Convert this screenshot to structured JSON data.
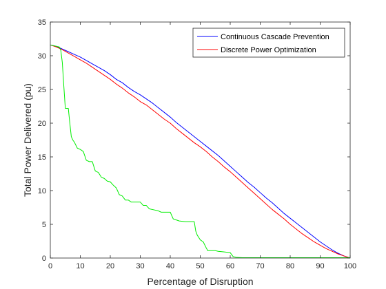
{
  "chart_data": {
    "type": "line",
    "xlabel": "Percentage of Disruption",
    "ylabel": "Total Power Delivered (pu)",
    "xlim": [
      0,
      100
    ],
    "ylim": [
      0,
      35
    ],
    "xticks": [
      0,
      10,
      20,
      30,
      40,
      50,
      60,
      70,
      80,
      90,
      100
    ],
    "yticks": [
      0,
      5,
      10,
      15,
      20,
      25,
      30,
      35
    ],
    "grid": false,
    "legend_position": "top-right",
    "series": [
      {
        "name": "Continuous Cascade Prevention",
        "color": "#0000ff",
        "points": [
          [
            0,
            31.6
          ],
          [
            2,
            31.4
          ],
          [
            4,
            31.0
          ],
          [
            6,
            30.6
          ],
          [
            8,
            30.2
          ],
          [
            10,
            29.8
          ],
          [
            12,
            29.3
          ],
          [
            14,
            28.8
          ],
          [
            16,
            28.3
          ],
          [
            18,
            27.8
          ],
          [
            20,
            27.2
          ],
          [
            22,
            26.5
          ],
          [
            24,
            26.0
          ],
          [
            26,
            25.3
          ],
          [
            28,
            24.7
          ],
          [
            30,
            24.2
          ],
          [
            32,
            23.6
          ],
          [
            34,
            23.0
          ],
          [
            36,
            22.3
          ],
          [
            38,
            21.6
          ],
          [
            40,
            20.9
          ],
          [
            42,
            20.1
          ],
          [
            44,
            19.4
          ],
          [
            46,
            18.7
          ],
          [
            48,
            18.0
          ],
          [
            50,
            17.3
          ],
          [
            52,
            16.6
          ],
          [
            54,
            15.9
          ],
          [
            56,
            15.2
          ],
          [
            58,
            14.4
          ],
          [
            60,
            13.6
          ],
          [
            62,
            12.8
          ],
          [
            64,
            12.0
          ],
          [
            66,
            11.2
          ],
          [
            68,
            10.5
          ],
          [
            70,
            9.7
          ],
          [
            72,
            8.9
          ],
          [
            74,
            8.2
          ],
          [
            76,
            7.4
          ],
          [
            78,
            6.6
          ],
          [
            80,
            5.9
          ],
          [
            82,
            5.2
          ],
          [
            84,
            4.5
          ],
          [
            86,
            3.8
          ],
          [
            88,
            3.1
          ],
          [
            90,
            2.4
          ],
          [
            92,
            1.8
          ],
          [
            94,
            1.2
          ],
          [
            96,
            0.7
          ],
          [
            98,
            0.3
          ],
          [
            100,
            0.0
          ]
        ]
      },
      {
        "name": "Discrete Power Optimization",
        "color": "#ff0000",
        "points": [
          [
            0,
            31.6
          ],
          [
            2,
            31.3
          ],
          [
            4,
            30.9
          ],
          [
            6,
            30.4
          ],
          [
            8,
            29.9
          ],
          [
            10,
            29.4
          ],
          [
            12,
            28.9
          ],
          [
            14,
            28.3
          ],
          [
            16,
            27.7
          ],
          [
            18,
            27.1
          ],
          [
            20,
            26.5
          ],
          [
            22,
            25.8
          ],
          [
            24,
            25.2
          ],
          [
            26,
            24.5
          ],
          [
            28,
            23.9
          ],
          [
            30,
            23.2
          ],
          [
            32,
            22.7
          ],
          [
            34,
            22.0
          ],
          [
            36,
            21.3
          ],
          [
            38,
            20.6
          ],
          [
            40,
            20.0
          ],
          [
            42,
            19.2
          ],
          [
            44,
            18.5
          ],
          [
            46,
            17.8
          ],
          [
            48,
            17.1
          ],
          [
            50,
            16.5
          ],
          [
            52,
            15.8
          ],
          [
            54,
            15.0
          ],
          [
            56,
            14.3
          ],
          [
            58,
            13.5
          ],
          [
            60,
            12.8
          ],
          [
            62,
            12.0
          ],
          [
            64,
            11.2
          ],
          [
            66,
            10.4
          ],
          [
            68,
            9.6
          ],
          [
            70,
            8.8
          ],
          [
            72,
            8.0
          ],
          [
            74,
            7.2
          ],
          [
            76,
            6.5
          ],
          [
            78,
            5.8
          ],
          [
            80,
            5.0
          ],
          [
            82,
            4.3
          ],
          [
            84,
            3.6
          ],
          [
            86,
            3.0
          ],
          [
            88,
            2.4
          ],
          [
            90,
            1.9
          ],
          [
            92,
            1.4
          ],
          [
            94,
            1.0
          ],
          [
            96,
            0.6
          ],
          [
            98,
            0.3
          ],
          [
            100,
            0.0
          ]
        ]
      },
      {
        "name": "",
        "color": "#00ee00",
        "points": [
          [
            0,
            31.6
          ],
          [
            3,
            31.3
          ],
          [
            3.5,
            30.8
          ],
          [
            4,
            29.0
          ],
          [
            4.5,
            25.5
          ],
          [
            5,
            22.2
          ],
          [
            6,
            22.2
          ],
          [
            6.5,
            20.0
          ],
          [
            7,
            18.0
          ],
          [
            7.5,
            17.5
          ],
          [
            8,
            17.2
          ],
          [
            9,
            16.3
          ],
          [
            10,
            16.1
          ],
          [
            11,
            15.8
          ],
          [
            12,
            14.5
          ],
          [
            13,
            14.3
          ],
          [
            14,
            14.3
          ],
          [
            15,
            12.9
          ],
          [
            16,
            12.7
          ],
          [
            17,
            12.0
          ],
          [
            18,
            11.8
          ],
          [
            19,
            11.4
          ],
          [
            20,
            11.3
          ],
          [
            21,
            10.8
          ],
          [
            22,
            10.4
          ],
          [
            23,
            9.4
          ],
          [
            24,
            9.2
          ],
          [
            25,
            8.6
          ],
          [
            26,
            8.6
          ],
          [
            27,
            8.3
          ],
          [
            28,
            8.3
          ],
          [
            30,
            8.3
          ],
          [
            31,
            7.8
          ],
          [
            32,
            7.8
          ],
          [
            33,
            7.3
          ],
          [
            34,
            7.2
          ],
          [
            36,
            7.0
          ],
          [
            37,
            6.8
          ],
          [
            40,
            6.8
          ],
          [
            41,
            5.8
          ],
          [
            43,
            5.5
          ],
          [
            45,
            5.4
          ],
          [
            48,
            5.4
          ],
          [
            48.5,
            4.0
          ],
          [
            49,
            3.4
          ],
          [
            50,
            2.7
          ],
          [
            51,
            2.4
          ],
          [
            52,
            1.5
          ],
          [
            52.5,
            1.1
          ],
          [
            55,
            1.1
          ],
          [
            56,
            1.0
          ],
          [
            58,
            0.9
          ],
          [
            60,
            0.8
          ],
          [
            61,
            0.2
          ],
          [
            62,
            0.1
          ],
          [
            64,
            0.05
          ],
          [
            80,
            0.05
          ],
          [
            100,
            0.05
          ]
        ]
      }
    ]
  }
}
